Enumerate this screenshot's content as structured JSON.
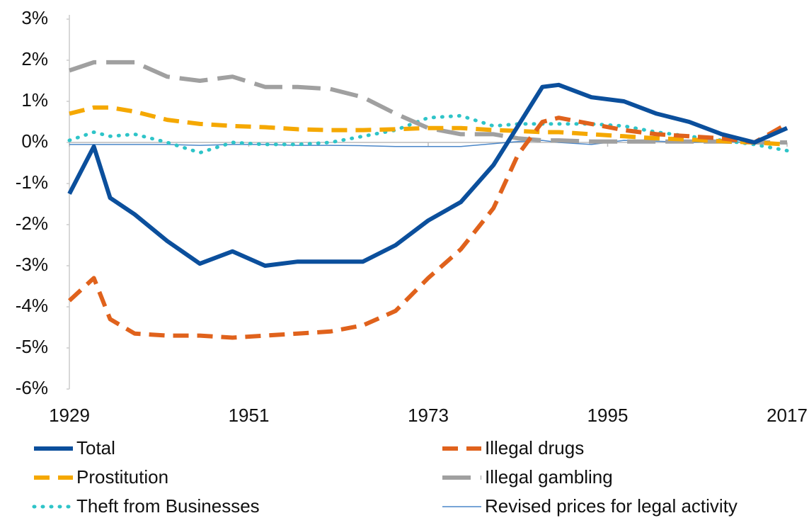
{
  "chart_data": {
    "type": "line",
    "x": [
      1929,
      1932,
      1934,
      1937,
      1941,
      1945,
      1949,
      1953,
      1957,
      1961,
      1965,
      1969,
      1973,
      1977,
      1981,
      1984,
      1987,
      1989,
      1993,
      1997,
      2001,
      2005,
      2009,
      2013,
      2017
    ],
    "xlim": [
      1929,
      2017
    ],
    "xticks": [
      1929,
      1951,
      1973,
      1995,
      2017
    ],
    "ylim": [
      -6,
      3
    ],
    "yticks": [
      {
        "value": 3,
        "label": "3%"
      },
      {
        "value": 2,
        "label": "2%"
      },
      {
        "value": 1,
        "label": "1%"
      },
      {
        "value": 0,
        "label": "0%"
      },
      {
        "value": -1,
        "label": "-1%"
      },
      {
        "value": -2,
        "label": "-2%"
      },
      {
        "value": -3,
        "label": "-3%"
      },
      {
        "value": -4,
        "label": "-4%"
      },
      {
        "value": -5,
        "label": "-5%"
      },
      {
        "value": -6,
        "label": "-6%"
      }
    ],
    "grid": false,
    "legend": "bottom",
    "series": [
      {
        "name": "Total",
        "color": "#0b4f9c",
        "line_style": "solid",
        "width": 6,
        "values": [
          -1.25,
          -0.1,
          -1.35,
          -1.75,
          -2.4,
          -2.95,
          -2.65,
          -3.0,
          -2.9,
          -2.9,
          -2.9,
          -2.5,
          -1.9,
          -1.45,
          -0.55,
          0.4,
          1.35,
          1.4,
          1.1,
          1.0,
          0.7,
          0.5,
          0.2,
          0.0,
          0.35
        ]
      },
      {
        "name": "Illegal drugs",
        "color": "#e0621c",
        "line_style": "dashed",
        "width": 6,
        "values": [
          -3.85,
          -3.3,
          -4.3,
          -4.65,
          -4.7,
          -4.7,
          -4.75,
          -4.7,
          -4.65,
          -4.6,
          -4.45,
          -4.1,
          -3.3,
          -2.6,
          -1.6,
          -0.3,
          0.5,
          0.6,
          0.45,
          0.3,
          0.2,
          0.15,
          0.1,
          0.0,
          0.45
        ]
      },
      {
        "name": "Prostitution",
        "color": "#f5a800",
        "line_style": "dashed",
        "width": 6,
        "values": [
          0.7,
          0.85,
          0.85,
          0.75,
          0.55,
          0.45,
          0.4,
          0.37,
          0.32,
          0.3,
          0.3,
          0.32,
          0.35,
          0.35,
          0.3,
          0.28,
          0.25,
          0.25,
          0.2,
          0.15,
          0.1,
          0.07,
          0.03,
          0.0,
          -0.05
        ]
      },
      {
        "name": "Illegal gambling",
        "color": "#a0a0a0",
        "line_style": "longdash",
        "width": 6,
        "values": [
          1.75,
          1.95,
          1.95,
          1.95,
          1.6,
          1.5,
          1.6,
          1.35,
          1.35,
          1.3,
          1.1,
          0.7,
          0.35,
          0.2,
          0.2,
          0.1,
          0.05,
          0.05,
          0.02,
          0.02,
          0.02,
          0.02,
          0.02,
          0.0,
          0.0
        ]
      },
      {
        "name": "Theft from Businesses",
        "color": "#2ec4c8",
        "line_style": "dotted",
        "width": 5,
        "values": [
          0.05,
          0.25,
          0.15,
          0.2,
          0.0,
          -0.25,
          0.0,
          -0.05,
          -0.05,
          0.0,
          0.15,
          0.3,
          0.6,
          0.65,
          0.4,
          0.45,
          0.45,
          0.45,
          0.45,
          0.4,
          0.25,
          0.15,
          0.05,
          -0.05,
          -0.2
        ]
      },
      {
        "name": "Revised prices for legal activity",
        "color": "#4a86c8",
        "line_style": "solid",
        "width": 1.5,
        "values": [
          -0.05,
          -0.05,
          -0.05,
          -0.05,
          -0.05,
          -0.07,
          -0.05,
          -0.05,
          -0.07,
          -0.07,
          -0.08,
          -0.1,
          -0.1,
          -0.1,
          -0.03,
          0.02,
          0.05,
          0.0,
          -0.05,
          0.05,
          0.03,
          0.0,
          0.02,
          0.0,
          -0.02
        ]
      }
    ]
  }
}
